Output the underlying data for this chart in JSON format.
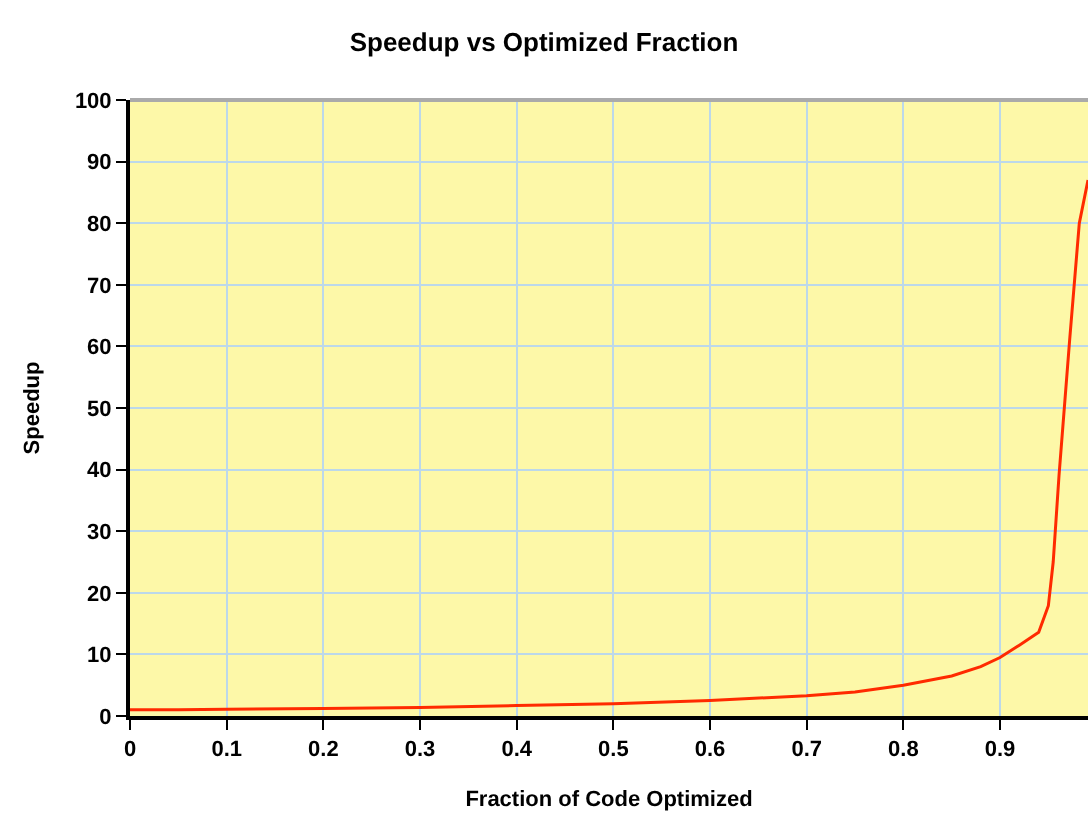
{
  "chart_data": {
    "type": "line",
    "title": "Speedup vs Optimized Fraction",
    "xlabel": "Fraction of Code Optimized",
    "ylabel": "Speedup",
    "x": [
      0,
      0.05,
      0.1,
      0.2,
      0.3,
      0.4,
      0.5,
      0.6,
      0.7,
      0.75,
      0.8,
      0.85,
      0.88,
      0.9,
      0.92,
      0.94,
      0.95,
      0.955,
      0.961,
      0.972,
      0.982,
      0.991
    ],
    "series": [
      {
        "color": "#ff2a00",
        "values": [
          1,
          1,
          1.1,
          1.2,
          1.4,
          1.7,
          2,
          2.5,
          3.3,
          3.9,
          5,
          6.5,
          8,
          9.5,
          11.5,
          13.6,
          17.9,
          25,
          39,
          61,
          80,
          87
        ]
      }
    ],
    "xlim": [
      0,
      0.991
    ],
    "xticks": [
      0,
      0.1,
      0.2,
      0.3,
      0.4,
      0.5,
      0.6,
      0.7,
      0.8,
      0.9
    ],
    "ylim": [
      0,
      100
    ],
    "yticks": [
      0,
      10,
      20,
      30,
      40,
      50,
      60,
      70,
      80,
      90,
      100
    ],
    "grid": true,
    "marker": "none",
    "line_style": "solid"
  }
}
